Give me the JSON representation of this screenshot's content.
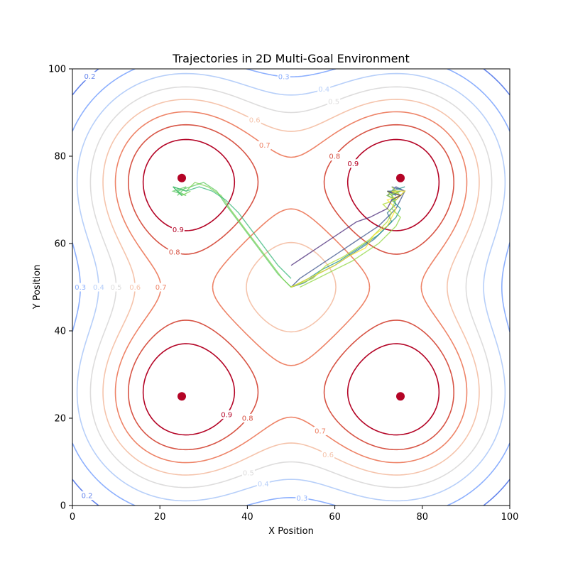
{
  "chart_data": {
    "type": "contour",
    "title": "Trajectories in 2D Multi-Goal Environment",
    "xlabel": "X Position",
    "ylabel": "Y Position",
    "xlim": [
      0,
      100
    ],
    "ylim": [
      0,
      100
    ],
    "xticks": [
      "0",
      "20",
      "40",
      "60",
      "80",
      "100"
    ],
    "yticks": [
      "0",
      "20",
      "40",
      "60",
      "80",
      "100"
    ],
    "grid": false,
    "legend": "none",
    "goals": [
      {
        "x": 25,
        "y": 75
      },
      {
        "x": 75,
        "y": 75
      },
      {
        "x": 25,
        "y": 25
      },
      {
        "x": 75,
        "y": 25
      }
    ],
    "goal_color": "#b40426",
    "contour_levels": [
      {
        "level": 0.2,
        "label": "0.2",
        "color": "#6485ec"
      },
      {
        "level": 0.3,
        "label": "0.3",
        "color": "#8db0fe"
      },
      {
        "level": 0.4,
        "label": "0.4",
        "color": "#b7cff9"
      },
      {
        "level": 0.5,
        "label": "0.5",
        "color": "#dddcdc"
      },
      {
        "level": 0.6,
        "label": "0.6",
        "color": "#f5c4ac"
      },
      {
        "level": 0.7,
        "label": "0.7",
        "color": "#ee8468"
      },
      {
        "level": 0.8,
        "label": "0.8",
        "color": "#d75445"
      },
      {
        "level": 0.9,
        "label": "0.9",
        "color": "#b40426"
      }
    ],
    "trajectories": [
      {
        "color": "#3b528b",
        "points": [
          [
            50,
            50
          ],
          [
            52,
            52
          ],
          [
            55,
            54
          ],
          [
            58,
            56
          ],
          [
            61,
            58
          ],
          [
            64,
            60
          ],
          [
            67,
            62
          ],
          [
            70,
            64
          ],
          [
            72,
            66
          ],
          [
            74,
            68
          ],
          [
            75,
            70
          ],
          [
            76,
            72
          ],
          [
            74,
            73
          ],
          [
            72,
            71
          ],
          [
            74,
            70
          ],
          [
            76,
            72
          ],
          [
            73,
            73
          ]
        ]
      },
      {
        "color": "#2c728e",
        "points": [
          [
            50,
            50
          ],
          [
            53,
            51
          ],
          [
            56,
            53
          ],
          [
            60,
            55
          ],
          [
            63,
            57
          ],
          [
            66,
            59
          ],
          [
            69,
            61
          ],
          [
            71,
            63
          ],
          [
            73,
            65
          ],
          [
            72,
            67
          ],
          [
            74,
            69
          ],
          [
            73,
            71
          ],
          [
            75,
            72
          ],
          [
            72,
            72
          ],
          [
            74,
            71
          ]
        ]
      },
      {
        "color": "#21918c",
        "points": [
          [
            50,
            50
          ],
          [
            54,
            52
          ],
          [
            57,
            54
          ],
          [
            61,
            56
          ],
          [
            64,
            58
          ],
          [
            67,
            60
          ],
          [
            70,
            62
          ],
          [
            72,
            64
          ],
          [
            74,
            66
          ],
          [
            75,
            68
          ],
          [
            73,
            70
          ],
          [
            75,
            71
          ],
          [
            73,
            72
          ],
          [
            76,
            73
          ]
        ]
      },
      {
        "color": "#5ec962",
        "points": [
          [
            50,
            50
          ],
          [
            47,
            53
          ],
          [
            44,
            57
          ],
          [
            41,
            61
          ],
          [
            38,
            65
          ],
          [
            35,
            69
          ],
          [
            33,
            72
          ],
          [
            30,
            74
          ],
          [
            27,
            73
          ],
          [
            24,
            72
          ],
          [
            26,
            71
          ],
          [
            23,
            72
          ],
          [
            26,
            73
          ],
          [
            24,
            71
          ]
        ]
      },
      {
        "color": "#7ad151",
        "points": [
          [
            50,
            50
          ],
          [
            48,
            52
          ],
          [
            45,
            56
          ],
          [
            42,
            60
          ],
          [
            39,
            64
          ],
          [
            36,
            68
          ],
          [
            34,
            71
          ],
          [
            31,
            73
          ],
          [
            28,
            74
          ],
          [
            26,
            72
          ],
          [
            23,
            73
          ],
          [
            25,
            71
          ],
          [
            27,
            72
          ]
        ]
      },
      {
        "color": "#addc30",
        "points": [
          [
            50,
            50
          ],
          [
            55,
            52
          ],
          [
            58,
            55
          ],
          [
            62,
            57
          ],
          [
            65,
            59
          ],
          [
            68,
            61
          ],
          [
            70,
            63
          ],
          [
            72,
            65
          ],
          [
            73,
            67
          ],
          [
            71,
            69
          ],
          [
            74,
            70
          ],
          [
            72,
            72
          ],
          [
            75,
            71
          ],
          [
            73,
            73
          ]
        ]
      },
      {
        "color": "#fde725",
        "points": [
          [
            50,
            50
          ],
          [
            56,
            53
          ],
          [
            60,
            55
          ],
          [
            63,
            57
          ],
          [
            67,
            59
          ],
          [
            69,
            62
          ],
          [
            72,
            64
          ],
          [
            73,
            66
          ],
          [
            74,
            68
          ],
          [
            72,
            70
          ],
          [
            75,
            71
          ],
          [
            73,
            72
          ],
          [
            76,
            72
          ],
          [
            74,
            70
          ]
        ]
      },
      {
        "color": "#482878",
        "points": [
          [
            50,
            55
          ],
          [
            53,
            57
          ],
          [
            56,
            59
          ],
          [
            59,
            61
          ],
          [
            62,
            63
          ],
          [
            65,
            65
          ],
          [
            68,
            66
          ],
          [
            70,
            67
          ],
          [
            72,
            68
          ],
          [
            73,
            70
          ],
          [
            75,
            71
          ],
          [
            72,
            72
          ]
        ]
      },
      {
        "color": "#35b779",
        "points": [
          [
            50,
            52
          ],
          [
            47,
            55
          ],
          [
            44,
            59
          ],
          [
            41,
            63
          ],
          [
            38,
            67
          ],
          [
            35,
            70
          ],
          [
            32,
            72
          ],
          [
            29,
            73
          ],
          [
            26,
            72
          ],
          [
            23,
            73
          ],
          [
            25,
            71
          ]
        ]
      },
      {
        "color": "#90d743",
        "points": [
          [
            52,
            50
          ],
          [
            56,
            52
          ],
          [
            60,
            54
          ],
          [
            64,
            56
          ],
          [
            67,
            58
          ],
          [
            70,
            60
          ],
          [
            72,
            62
          ],
          [
            74,
            64
          ],
          [
            75,
            66
          ],
          [
            73,
            68
          ],
          [
            74,
            70
          ],
          [
            72,
            71
          ],
          [
            75,
            72
          ]
        ]
      }
    ]
  }
}
